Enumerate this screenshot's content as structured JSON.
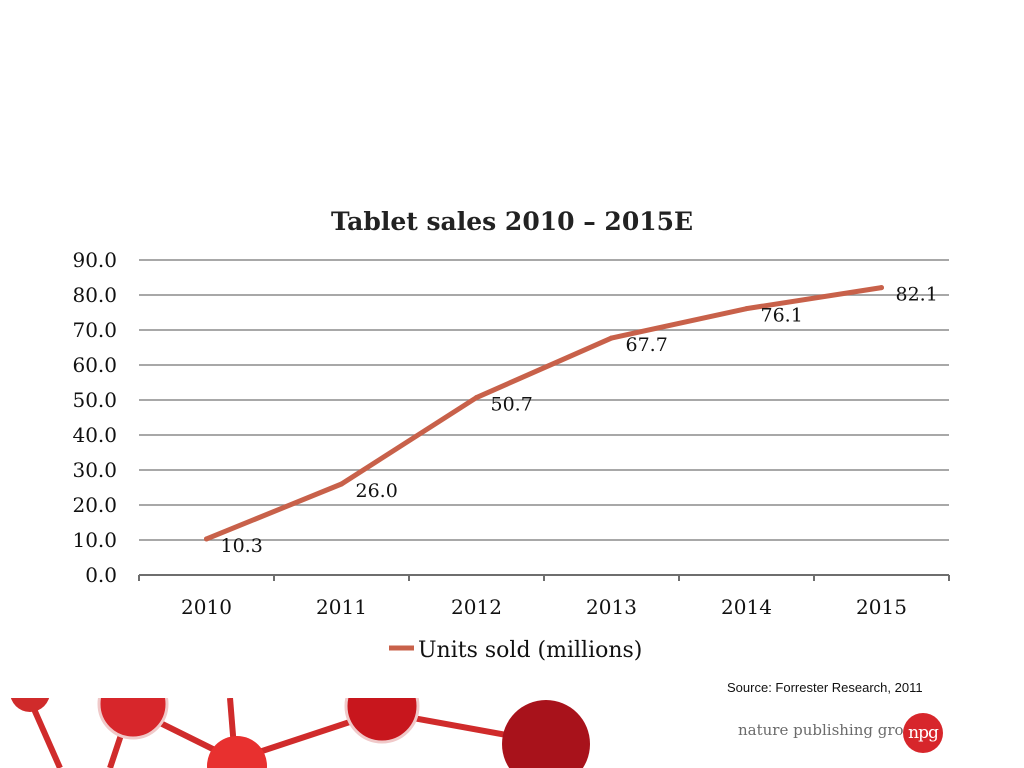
{
  "chart_data": {
    "type": "line",
    "title": "Tablet sales 2010 – 2015E",
    "categories": [
      "2010",
      "2011",
      "2012",
      "2013",
      "2014",
      "2015"
    ],
    "series": [
      {
        "name": "Units sold (millions)",
        "values": [
          10.3,
          26.0,
          50.7,
          67.7,
          76.1,
          82.1
        ],
        "color": "#c8614a"
      }
    ],
    "data_labels": [
      "10.3",
      "26.0",
      "50.7",
      "67.7",
      "76.1",
      "82.1"
    ],
    "y_ticks": [
      "0.0",
      "10.0",
      "20.0",
      "30.0",
      "40.0",
      "50.0",
      "60.0",
      "70.0",
      "80.0",
      "90.0"
    ],
    "ylim": [
      0,
      90
    ],
    "grid": true,
    "legend_position": "bottom",
    "xlabel": "",
    "ylabel": ""
  },
  "footer": {
    "source": "Source: Forrester Research, 2011",
    "publisher": "nature publishing group",
    "logo_text": "npg"
  },
  "colors": {
    "accent": "#d7262b",
    "line": "#c8614a",
    "grid": "#8c8c8c"
  }
}
